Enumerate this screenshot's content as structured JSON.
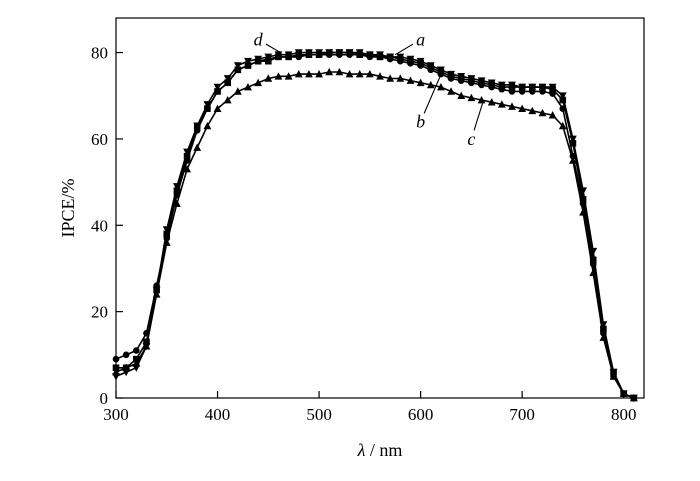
{
  "chart_data": {
    "type": "line",
    "xlabel_symbol": "λ",
    "xlabel_unit": "/ nm",
    "ylabel": "IPCE/%",
    "xlim": [
      300,
      820
    ],
    "ylim": [
      0,
      88
    ],
    "xticks": [
      300,
      400,
      500,
      600,
      700,
      800
    ],
    "yticks": [
      0,
      20,
      40,
      60,
      80
    ],
    "grid": false,
    "series": [
      {
        "name": "a",
        "marker": "square",
        "x": [
          300,
          310,
          320,
          330,
          340,
          350,
          360,
          370,
          380,
          390,
          400,
          410,
          420,
          430,
          440,
          450,
          460,
          470,
          480,
          490,
          500,
          510,
          520,
          530,
          540,
          550,
          560,
          570,
          580,
          590,
          600,
          610,
          620,
          630,
          640,
          650,
          660,
          670,
          680,
          690,
          700,
          710,
          720,
          730,
          740,
          750,
          760,
          770,
          780,
          790,
          800,
          810
        ],
        "y": [
          7,
          7,
          9,
          13,
          25,
          38,
          48,
          56,
          63,
          67,
          71,
          73,
          76,
          77,
          78,
          78,
          79,
          79,
          79.5,
          79.5,
          79.5,
          80,
          80,
          80,
          79.5,
          79.5,
          79,
          79,
          78.5,
          78,
          77.5,
          76.5,
          75.5,
          74.5,
          74,
          73.5,
          73,
          72.5,
          72,
          72,
          72,
          72,
          72,
          71.5,
          69,
          59,
          46,
          32,
          16,
          6,
          1,
          0
        ]
      },
      {
        "name": "b",
        "marker": "circle",
        "x": [
          300,
          310,
          320,
          330,
          340,
          350,
          360,
          370,
          380,
          390,
          400,
          410,
          420,
          430,
          440,
          450,
          460,
          470,
          480,
          490,
          500,
          510,
          520,
          530,
          540,
          550,
          560,
          570,
          580,
          590,
          600,
          610,
          620,
          630,
          640,
          650,
          660,
          670,
          680,
          690,
          700,
          710,
          720,
          730,
          740,
          750,
          760,
          770,
          780,
          790,
          800,
          810
        ],
        "y": [
          9,
          10,
          11,
          15,
          26,
          37,
          47,
          55,
          62,
          67,
          71,
          73,
          76,
          77,
          78,
          78.5,
          79,
          79,
          79,
          79.5,
          79.5,
          79.5,
          79.5,
          79.5,
          79.5,
          79,
          79,
          78.5,
          78,
          77.5,
          77,
          76,
          75,
          74,
          73.5,
          73,
          72.5,
          72,
          71.5,
          71,
          71,
          71,
          71,
          70.5,
          67,
          56,
          45,
          31,
          15,
          5,
          1,
          0
        ]
      },
      {
        "name": "c",
        "marker": "triangle-up",
        "x": [
          300,
          310,
          320,
          330,
          340,
          350,
          360,
          370,
          380,
          390,
          400,
          410,
          420,
          430,
          440,
          450,
          460,
          470,
          480,
          490,
          500,
          510,
          520,
          530,
          540,
          550,
          560,
          570,
          580,
          590,
          600,
          610,
          620,
          630,
          640,
          650,
          660,
          670,
          680,
          690,
          700,
          710,
          720,
          730,
          740,
          750,
          760,
          770,
          780,
          790,
          800,
          810
        ],
        "y": [
          6,
          7,
          8,
          12,
          24,
          36,
          45,
          53,
          58,
          63,
          67,
          69,
          71,
          72,
          73,
          74,
          74.5,
          74.5,
          75,
          75,
          75,
          75.5,
          75.5,
          75,
          75,
          75,
          74.5,
          74,
          74,
          73.5,
          73,
          72.5,
          72,
          71,
          70,
          69.5,
          69,
          68.5,
          68,
          67.5,
          67,
          66.5,
          66,
          65.5,
          63,
          55,
          43,
          29,
          14,
          5,
          1,
          0
        ]
      },
      {
        "name": "d",
        "marker": "triangle-down",
        "x": [
          300,
          310,
          320,
          330,
          340,
          350,
          360,
          370,
          380,
          390,
          400,
          410,
          420,
          430,
          440,
          450,
          460,
          470,
          480,
          490,
          500,
          510,
          520,
          530,
          540,
          550,
          560,
          570,
          580,
          590,
          600,
          610,
          620,
          630,
          640,
          650,
          660,
          670,
          680,
          690,
          700,
          710,
          720,
          730,
          740,
          750,
          760,
          770,
          780,
          790,
          800,
          810
        ],
        "y": [
          5,
          6,
          7,
          12,
          25,
          39,
          49,
          57,
          63,
          68,
          72,
          74,
          77,
          78,
          78.5,
          79,
          79.5,
          79.5,
          80,
          80,
          80,
          80,
          80,
          80,
          80,
          79.5,
          79.5,
          79,
          79,
          78.5,
          78,
          77,
          76,
          75,
          74.5,
          74,
          73.5,
          73,
          72.5,
          72.5,
          72,
          72,
          72,
          72,
          70,
          60,
          48,
          34,
          17,
          6,
          1,
          0
        ]
      }
    ],
    "annotations": [
      {
        "label": "d",
        "text_at": [
          440,
          83
        ],
        "points_to": [
          462,
          80
        ]
      },
      {
        "label": "a",
        "text_at": [
          600,
          83
        ],
        "points_to": [
          575,
          79.5
        ]
      },
      {
        "label": "b",
        "text_at": [
          600,
          64
        ],
        "points_to": [
          622,
          76
        ]
      },
      {
        "label": "c",
        "text_at": [
          650,
          60
        ],
        "points_to": [
          662,
          69
        ]
      }
    ]
  }
}
